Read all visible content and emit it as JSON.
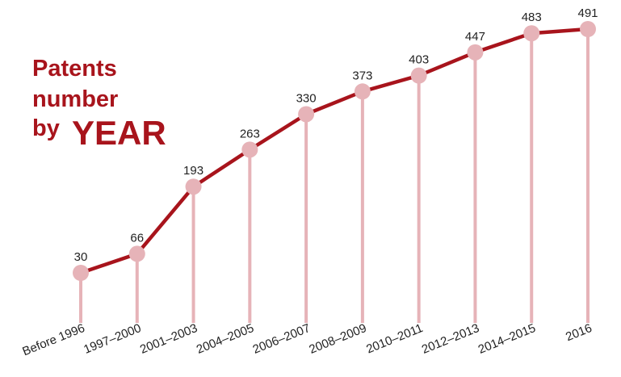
{
  "title": {
    "line1": "Patents",
    "line2": "number",
    "line3_small": "by",
    "line3_big": "YEAR"
  },
  "colors": {
    "title": "#a8141c",
    "line": "#a8141c",
    "marker": "#e6b3b8",
    "stem": "#e6b3b8",
    "text": "#222222"
  },
  "chart_data": {
    "type": "line",
    "title": "Patents number by YEAR",
    "xlabel": "",
    "ylabel": "",
    "categories": [
      "Before 1996",
      "1997–2000",
      "2001–2003",
      "2004–2005",
      "2006–2007",
      "2008–2009",
      "2010–2011",
      "2012–2013",
      "2014–2015",
      "2016"
    ],
    "values": [
      30,
      66,
      193,
      263,
      330,
      373,
      403,
      447,
      483,
      491
    ],
    "grid": false,
    "legend": "none",
    "markers": "circles with vertical drop lines",
    "data_labels": true
  }
}
